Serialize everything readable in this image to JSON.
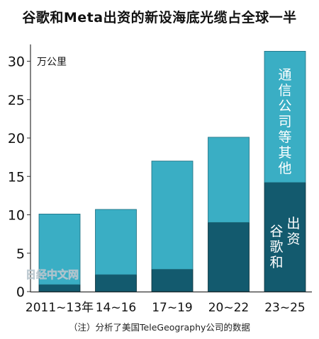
{
  "chart_data": {
    "type": "bar",
    "stacked": true,
    "title": "谷歌和Meta出资的新设海底光缆占全球一半",
    "unit_label": "万公里",
    "categories": [
      "2011~13年",
      "14~16",
      "17~19",
      "20~22",
      "23~25"
    ],
    "ylim": [
      0,
      32
    ],
    "yticks": [
      0,
      5,
      10,
      15,
      20,
      25,
      30
    ],
    "grid": false,
    "series": [
      {
        "name": "谷歌和Meta出资",
        "label_text": "出资谷歌和",
        "color": "#135a6e",
        "values": [
          0.9,
          2.2,
          2.9,
          9.0,
          14.2
        ]
      },
      {
        "name": "通信公司等其他",
        "label_text": "通信公司等其他",
        "color": "#3aaec4",
        "values": [
          9.2,
          8.5,
          14.1,
          11.1,
          17.1
        ]
      }
    ],
    "source_note": "（注）分析了美国TeleGeography公司的数据",
    "watermark": "日经中文网"
  }
}
